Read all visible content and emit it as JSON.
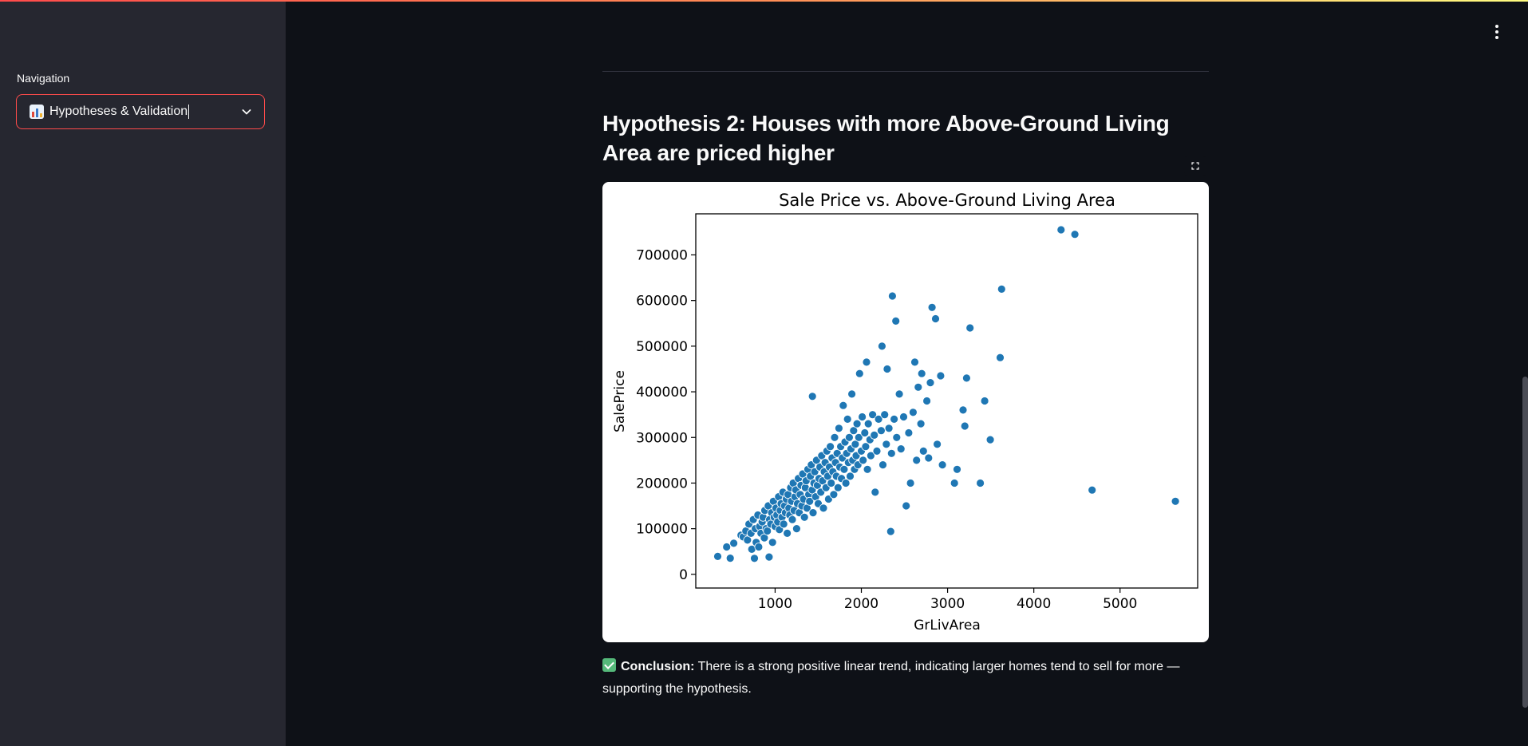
{
  "sidebar": {
    "nav_label": "Navigation",
    "selected_page": "Hypotheses & Validation",
    "selected_icon": "bar-chart-emoji"
  },
  "main": {
    "heading": "Hypothesis 2: Houses with more Above-Ground Living Area are priced higher",
    "conclusion_label": "Conclusion:",
    "conclusion_text": " There is a strong positive linear trend, indicating larger homes tend to sell for more — supporting the hypothesis."
  },
  "colors": {
    "accent": "#ff4b4b",
    "point": "#1f77b4",
    "background": "#0e1117",
    "sidebar": "#262730"
  },
  "chart_data": {
    "type": "scatter",
    "title": "Sale Price vs. Above-Ground Living Area",
    "xlabel": "GrLivArea",
    "ylabel": "SalePrice",
    "xlim": [
      80,
      5900
    ],
    "ylim": [
      -30000,
      790000
    ],
    "xticks": [
      1000,
      2000,
      3000,
      4000,
      5000
    ],
    "yticks": [
      0,
      100000,
      200000,
      300000,
      400000,
      500000,
      600000,
      700000
    ],
    "grid": false,
    "series": [
      {
        "points": [
          [
            334,
            39300
          ],
          [
            438,
            60000
          ],
          [
            480,
            35311
          ],
          [
            520,
            68000
          ],
          [
            605,
            86000
          ],
          [
            630,
            82000
          ],
          [
            660,
            95000
          ],
          [
            680,
            75000
          ],
          [
            696,
            110000
          ],
          [
            720,
            90000
          ],
          [
            730,
            55000
          ],
          [
            747,
            120000
          ],
          [
            760,
            35000
          ],
          [
            770,
            100000
          ],
          [
            780,
            70000
          ],
          [
            800,
            130000
          ],
          [
            810,
            60000
          ],
          [
            820,
            105000
          ],
          [
            836,
            90000
          ],
          [
            850,
            115000
          ],
          [
            860,
            125000
          ],
          [
            875,
            80000
          ],
          [
            880,
            140000
          ],
          [
            896,
            100000
          ],
          [
            910,
            95000
          ],
          [
            920,
            150000
          ],
          [
            930,
            38000
          ],
          [
            936,
            120000
          ],
          [
            950,
            110000
          ],
          [
            960,
            135000
          ],
          [
            970,
            70000
          ],
          [
            980,
            160000
          ],
          [
            990,
            125000
          ],
          [
            1000,
            105000
          ],
          [
            1010,
            145000
          ],
          [
            1020,
            130000
          ],
          [
            1030,
            115000
          ],
          [
            1040,
            170000
          ],
          [
            1050,
            98000
          ],
          [
            1060,
            140000
          ],
          [
            1070,
            155000
          ],
          [
            1080,
            125000
          ],
          [
            1090,
            180000
          ],
          [
            1100,
            110000
          ],
          [
            1110,
            150000
          ],
          [
            1120,
            135000
          ],
          [
            1130,
            165000
          ],
          [
            1140,
            90000
          ],
          [
            1150,
            175000
          ],
          [
            1160,
            145000
          ],
          [
            1170,
            130000
          ],
          [
            1180,
            190000
          ],
          [
            1190,
            160000
          ],
          [
            1200,
            120000
          ],
          [
            1210,
            200000
          ],
          [
            1220,
            140000
          ],
          [
            1230,
            170000
          ],
          [
            1240,
            185000
          ],
          [
            1250,
            100000
          ],
          [
            1260,
            155000
          ],
          [
            1270,
            210000
          ],
          [
            1280,
            135000
          ],
          [
            1290,
            175000
          ],
          [
            1300,
            195000
          ],
          [
            1310,
            150000
          ],
          [
            1320,
            220000
          ],
          [
            1330,
            165000
          ],
          [
            1340,
            125000
          ],
          [
            1350,
            190000
          ],
          [
            1360,
            205000
          ],
          [
            1370,
            145000
          ],
          [
            1380,
            230000
          ],
          [
            1390,
            175000
          ],
          [
            1400,
            160000
          ],
          [
            1410,
            215000
          ],
          [
            1420,
            240000
          ],
          [
            1430,
            185000
          ],
          [
            1433,
            390000
          ],
          [
            1440,
            135000
          ],
          [
            1450,
            200000
          ],
          [
            1460,
            225000
          ],
          [
            1470,
            170000
          ],
          [
            1480,
            250000
          ],
          [
            1490,
            195000
          ],
          [
            1500,
            155000
          ],
          [
            1510,
            210000
          ],
          [
            1520,
            235000
          ],
          [
            1530,
            180000
          ],
          [
            1540,
            260000
          ],
          [
            1550,
            205000
          ],
          [
            1560,
            145000
          ],
          [
            1570,
            225000
          ],
          [
            1580,
            245000
          ],
          [
            1590,
            190000
          ],
          [
            1600,
            270000
          ],
          [
            1610,
            215000
          ],
          [
            1620,
            165000
          ],
          [
            1630,
            235000
          ],
          [
            1640,
            280000
          ],
          [
            1650,
            200000
          ],
          [
            1660,
            255000
          ],
          [
            1670,
            225000
          ],
          [
            1680,
            175000
          ],
          [
            1690,
            300000
          ],
          [
            1700,
            245000
          ],
          [
            1710,
            215000
          ],
          [
            1720,
            265000
          ],
          [
            1730,
            190000
          ],
          [
            1740,
            320000
          ],
          [
            1750,
            235000
          ],
          [
            1760,
            280000
          ],
          [
            1770,
            210000
          ],
          [
            1780,
            255000
          ],
          [
            1790,
            370000
          ],
          [
            1800,
            230000
          ],
          [
            1810,
            290000
          ],
          [
            1820,
            200000
          ],
          [
            1830,
            265000
          ],
          [
            1840,
            340000
          ],
          [
            1850,
            245000
          ],
          [
            1860,
            300000
          ],
          [
            1870,
            215000
          ],
          [
            1880,
            275000
          ],
          [
            1890,
            395000
          ],
          [
            1900,
            250000
          ],
          [
            1910,
            315000
          ],
          [
            1920,
            230000
          ],
          [
            1930,
            285000
          ],
          [
            1940,
            260000
          ],
          [
            1950,
            330000
          ],
          [
            1960,
            240000
          ],
          [
            1970,
            300000
          ],
          [
            1980,
            440000
          ],
          [
            2000,
            270000
          ],
          [
            2010,
            345000
          ],
          [
            2020,
            250000
          ],
          [
            2040,
            310000
          ],
          [
            2050,
            280000
          ],
          [
            2060,
            465000
          ],
          [
            2070,
            230000
          ],
          [
            2080,
            330000
          ],
          [
            2100,
            295000
          ],
          [
            2110,
            260000
          ],
          [
            2130,
            350000
          ],
          [
            2150,
            305000
          ],
          [
            2160,
            180000
          ],
          [
            2180,
            270000
          ],
          [
            2200,
            340000
          ],
          [
            2230,
            315000
          ],
          [
            2240,
            500000
          ],
          [
            2250,
            240000
          ],
          [
            2270,
            350000
          ],
          [
            2290,
            285000
          ],
          [
            2300,
            450000
          ],
          [
            2320,
            320000
          ],
          [
            2340,
            94000
          ],
          [
            2350,
            265000
          ],
          [
            2360,
            610000
          ],
          [
            2380,
            340000
          ],
          [
            2400,
            555000
          ],
          [
            2410,
            300000
          ],
          [
            2440,
            395000
          ],
          [
            2460,
            275000
          ],
          [
            2490,
            345000
          ],
          [
            2520,
            150000
          ],
          [
            2550,
            310000
          ],
          [
            2570,
            200000
          ],
          [
            2600,
            355000
          ],
          [
            2620,
            465000
          ],
          [
            2640,
            250000
          ],
          [
            2660,
            410000
          ],
          [
            2690,
            330000
          ],
          [
            2700,
            440000
          ],
          [
            2720,
            270000
          ],
          [
            2760,
            380000
          ],
          [
            2780,
            255000
          ],
          [
            2800,
            420000
          ],
          [
            2820,
            585000
          ],
          [
            2860,
            560000
          ],
          [
            2880,
            285000
          ],
          [
            2920,
            435000
          ],
          [
            2940,
            240000
          ],
          [
            3080,
            200000
          ],
          [
            3110,
            230000
          ],
          [
            3180,
            360000
          ],
          [
            3200,
            325000
          ],
          [
            3220,
            430000
          ],
          [
            3260,
            540000
          ],
          [
            3380,
            200000
          ],
          [
            3430,
            380000
          ],
          [
            3495,
            295000
          ],
          [
            3610,
            475000
          ],
          [
            3627,
            625000
          ],
          [
            4316,
            755000
          ],
          [
            4476,
            745000
          ],
          [
            4676,
            184750
          ],
          [
            5642,
            160000
          ]
        ]
      }
    ]
  }
}
